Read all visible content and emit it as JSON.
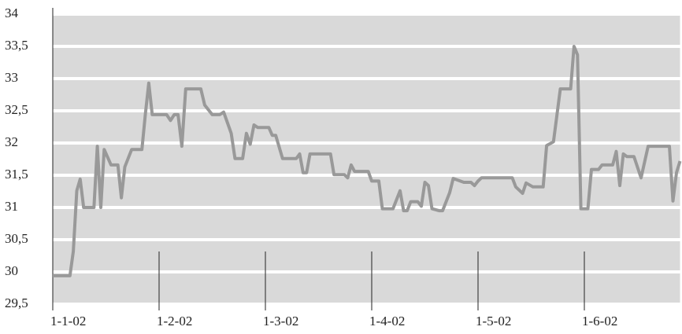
{
  "chart_data": {
    "type": "line",
    "x": [
      "1-1-02",
      "6-1-02",
      "7-1-02",
      "8-1-02",
      "9-1-02",
      "10-1-02",
      "13-1-02",
      "14-1-02",
      "15-1-02",
      "16-1-02",
      "18-1-02",
      "20-1-02",
      "21-1-02",
      "22-1-02",
      "24-1-02",
      "27-1-02",
      "28-1-02",
      "29-1-02",
      "30-1-02",
      "3-2-02",
      "4-2-02",
      "5-2-02",
      "6-2-02",
      "7-2-02",
      "8-2-02",
      "12-2-02",
      "13-2-02",
      "15-2-02",
      "17-2-02",
      "18-2-02",
      "20-2-02",
      "21-2-02",
      "23-2-02",
      "24-2-02",
      "25-2-02",
      "26-2-02",
      "27-2-02",
      "2-3-02",
      "3-3-02",
      "4-3-02",
      "6-3-02",
      "10-3-02",
      "11-3-02",
      "12-3-02",
      "13-3-02",
      "14-3-02",
      "20-3-02",
      "21-3-02",
      "24-3-02",
      "25-3-02",
      "26-3-02",
      "27-3-02",
      "31-3-02",
      "1-4-02",
      "3-4-02",
      "4-4-02",
      "7-4-02",
      "9-4-02",
      "10-4-02",
      "11-4-02",
      "12-4-02",
      "14-4-02",
      "15-4-02",
      "16-4-02",
      "17-4-02",
      "18-4-02",
      "20-4-02",
      "21-4-02",
      "23-4-02",
      "24-4-02",
      "27-4-02",
      "29-4-02",
      "30-4-02",
      "1-5-02",
      "2-5-02",
      "11-5-02",
      "12-5-02",
      "14-5-02",
      "15-5-02",
      "17-5-02",
      "20-5-02",
      "21-5-02",
      "23-5-02",
      "25-5-02",
      "28-5-02",
      "29-5-02",
      "30-5-02",
      "31-5-02",
      "2-6-02",
      "3-6-02",
      "5-6-02",
      "6-6-02",
      "9-6-02",
      "10-6-02",
      "11-6-02",
      "12-6-02",
      "13-6-02",
      "15-6-02",
      "17-6-02",
      "19-6-02",
      "25-6-02",
      "26-6-02",
      "27-6-02",
      "28-6-02"
    ],
    "series": [
      {
        "color": "#999999",
        "values": [
          29.94,
          29.94,
          30.32,
          31.26,
          31.44,
          31.0,
          31.0,
          31.95,
          31.0,
          31.9,
          31.66,
          31.66,
          31.15,
          31.63,
          31.9,
          31.9,
          32.45,
          32.93,
          32.44,
          32.44,
          32.35,
          32.44,
          32.44,
          31.95,
          32.84,
          32.84,
          32.59,
          32.44,
          32.44,
          32.48,
          32.15,
          31.76,
          31.76,
          32.15,
          31.98,
          32.28,
          32.24,
          32.24,
          32.12,
          32.12,
          31.76,
          31.76,
          31.83,
          31.54,
          31.54,
          31.83,
          31.83,
          31.51,
          31.51,
          31.46,
          31.66,
          31.56,
          31.56,
          31.41,
          31.41,
          30.98,
          30.98,
          31.26,
          30.95,
          30.95,
          31.09,
          31.09,
          31.02,
          31.39,
          31.34,
          30.98,
          30.95,
          30.95,
          31.23,
          31.45,
          31.39,
          31.39,
          31.34,
          31.41,
          31.46,
          31.46,
          31.32,
          31.22,
          31.38,
          31.32,
          31.32,
          31.96,
          32.02,
          32.84,
          32.84,
          33.5,
          33.37,
          30.98,
          30.98,
          31.59,
          31.59,
          31.66,
          31.66,
          31.87,
          31.34,
          31.83,
          31.79,
          31.79,
          31.46,
          31.95,
          31.95,
          31.1,
          31.54,
          31.72
        ]
      }
    ],
    "xlim": [
      "1-1-02",
      "28-6-02"
    ],
    "xticks": [
      "1-1-02",
      "1-2-02",
      "1-3-02",
      "1-4-02",
      "1-5-02",
      "1-6-02"
    ],
    "ylim": [
      29.5,
      34
    ],
    "yticks": [
      {
        "value": 29.5,
        "label": "29,5"
      },
      30,
      {
        "value": 30.5,
        "label": "30,5"
      },
      31,
      {
        "value": 31.5,
        "label": "31,5"
      },
      32,
      {
        "value": 32.5,
        "label": "32,5"
      },
      33,
      {
        "value": 33.5,
        "label": "33,5"
      },
      34
    ],
    "grid": true
  }
}
